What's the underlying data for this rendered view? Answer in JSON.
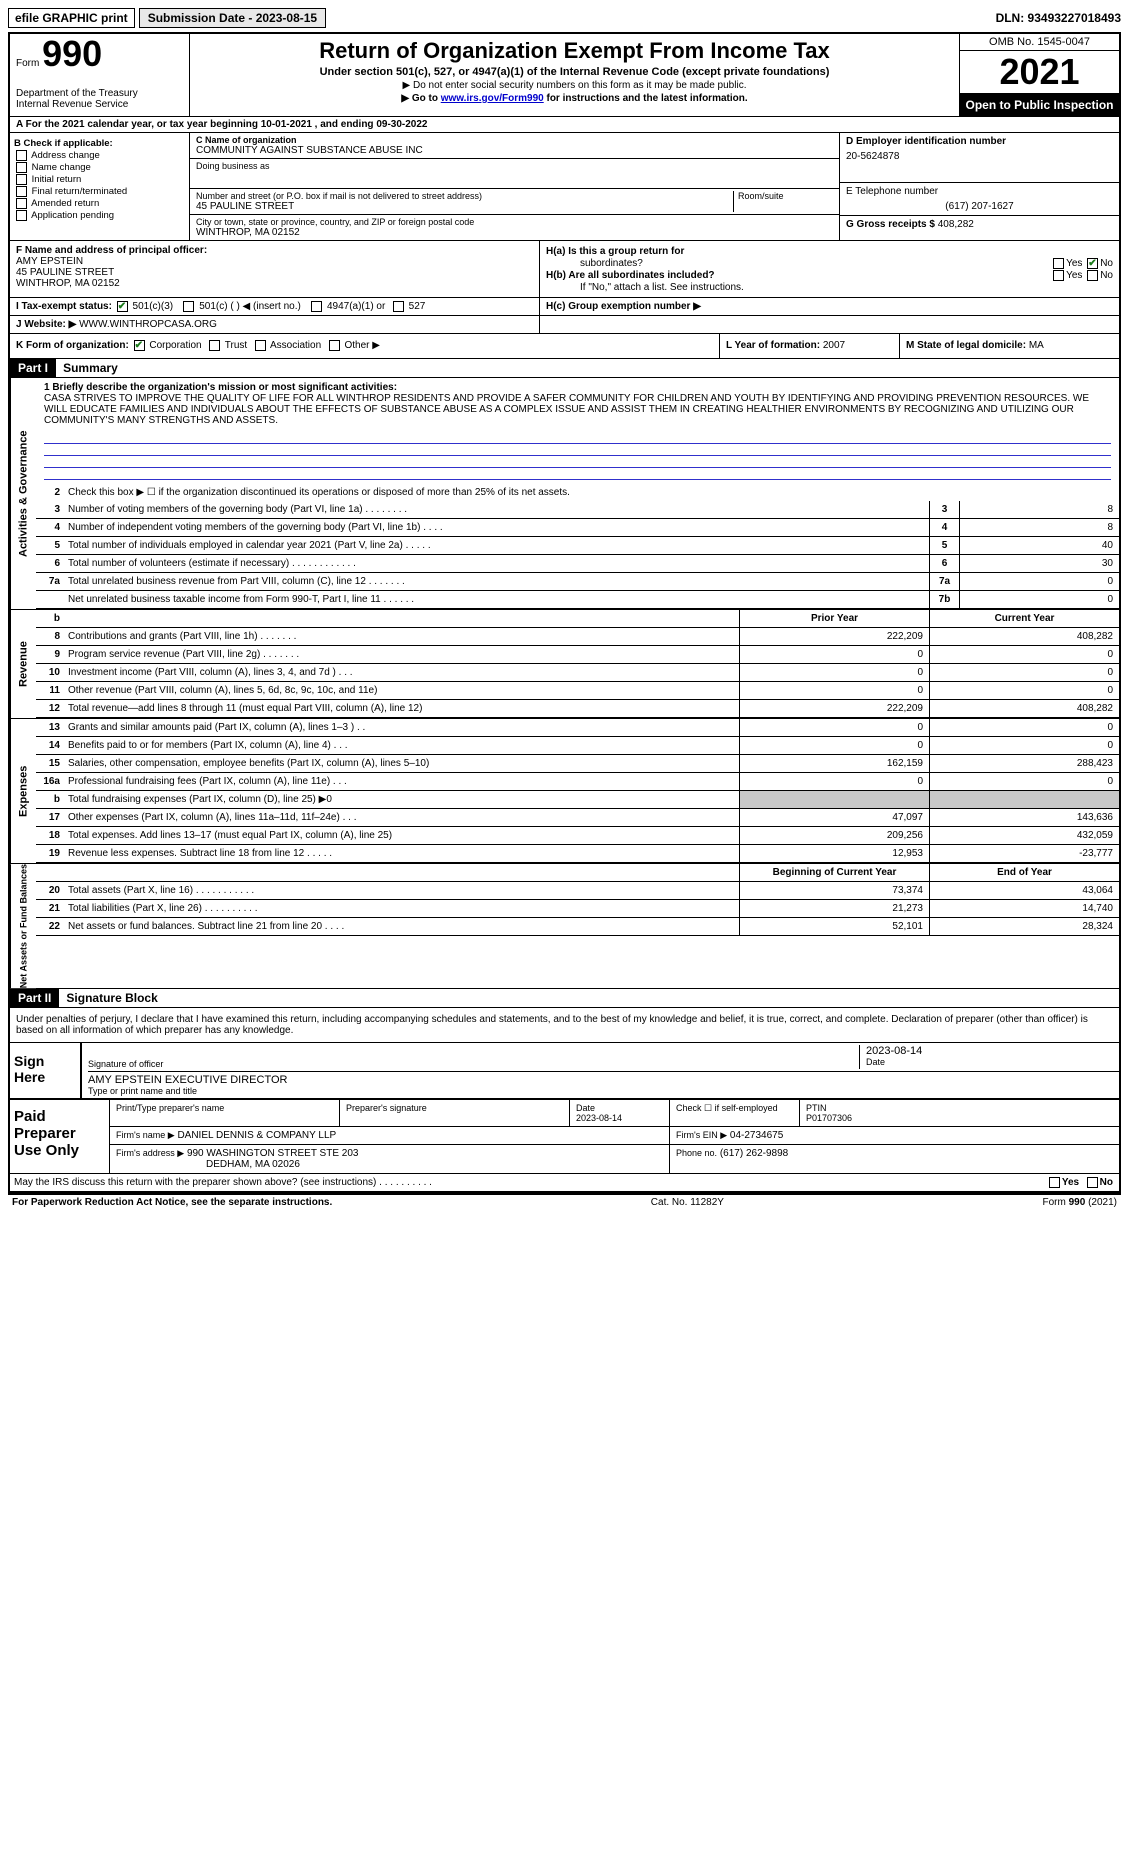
{
  "topbar": {
    "efile": "efile GRAPHIC print",
    "submission": "Submission Date - 2023-08-15",
    "dln": "DLN: 93493227018493"
  },
  "header": {
    "form_word": "Form",
    "form_num": "990",
    "dept": "Department of the Treasury",
    "irs": "Internal Revenue Service",
    "title": "Return of Organization Exempt From Income Tax",
    "sub": "Under section 501(c), 527, or 4947(a)(1) of the Internal Revenue Code (except private foundations)",
    "note1": "Do not enter social security numbers on this form as it may be made public.",
    "note2_a": "Go to ",
    "note2_link": "www.irs.gov/Form990",
    "note2_b": " for instructions and the latest information.",
    "omb": "OMB No. 1545-0047",
    "year": "2021",
    "open": "Open to Public Inspection"
  },
  "row_a": "A  For the 2021 calendar year, or tax year beginning 10-01-2021    , and ending 09-30-2022",
  "col_b": {
    "label": "B Check if applicable:",
    "items": [
      "Address change",
      "Name change",
      "Initial return",
      "Final return/terminated",
      "Amended return",
      "Application pending"
    ]
  },
  "col_c": {
    "name_label": "C Name of organization",
    "name": "COMMUNITY AGAINST SUBSTANCE ABUSE INC",
    "dba_label": "Doing business as",
    "street_label": "Number and street (or P.O. box if mail is not delivered to street address)",
    "street": "45 PAULINE STREET",
    "room_label": "Room/suite",
    "city_label": "City or town, state or province, country, and ZIP or foreign postal code",
    "city": "WINTHROP, MA  02152"
  },
  "col_d": {
    "label": "D Employer identification number",
    "val": "20-5624878",
    "e_label": "E Telephone number",
    "e_val": "(617) 207-1627",
    "g_label": "G Gross receipts $",
    "g_val": "408,282"
  },
  "col_f": {
    "label": "F  Name and address of principal officer:",
    "name": "AMY EPSTEIN",
    "street": "45 PAULINE STREET",
    "city": "WINTHROP, MA  02152"
  },
  "col_h": {
    "ha": "H(a)  Is this a group return for",
    "ha2": "subordinates?",
    "hb": "H(b)  Are all subordinates included?",
    "hb_note": "If \"No,\" attach a list. See instructions.",
    "hc": "H(c)  Group exemption number ▶",
    "yes": "Yes",
    "no": "No"
  },
  "row_i": {
    "label": "I    Tax-exempt status:",
    "opts": [
      "501(c)(3)",
      "501(c) (  ) ◀ (insert no.)",
      "4947(a)(1) or",
      "527"
    ]
  },
  "row_j": {
    "label": "J   Website: ▶",
    "val": "WWW.WINTHROPCASA.ORG"
  },
  "row_k": {
    "label": "K Form of organization:",
    "opts": [
      "Corporation",
      "Trust",
      "Association",
      "Other ▶"
    ]
  },
  "row_l": {
    "label": "L Year of formation:",
    "val": "2007"
  },
  "row_m": {
    "label": "M State of legal domicile:",
    "val": "MA"
  },
  "part1": {
    "hdr": "Part I",
    "title": "Summary",
    "tab": "Activities & Governance",
    "l1_label": "1  Briefly describe the organization's mission or most significant activities:",
    "l1_text": "CASA STRIVES TO IMPROVE THE QUALITY OF LIFE FOR ALL WINTHROP RESIDENTS AND PROVIDE A SAFER COMMUNITY FOR CHILDREN AND YOUTH BY IDENTIFYING AND PROVIDING PREVENTION RESOURCES. WE WILL EDUCATE FAMILIES AND INDIVIDUALS ABOUT THE EFFECTS OF SUBSTANCE ABUSE AS A COMPLEX ISSUE AND ASSIST THEM IN CREATING HEALTHIER ENVIRONMENTS BY RECOGNIZING AND UTILIZING OUR COMMUNITY'S MANY STRENGTHS AND ASSETS.",
    "l2": "Check this box ▶ ☐  if the organization discontinued its operations or disposed of more than 25% of its net assets.",
    "lines": [
      {
        "n": "3",
        "t": "Number of voting members of the governing body (Part VI, line 1a)   .    .    .    .    .    .    .    .",
        "b": "3",
        "v": "8"
      },
      {
        "n": "4",
        "t": "Number of independent voting members of the governing body (Part VI, line 1b)   .    .    .    .",
        "b": "4",
        "v": "8"
      },
      {
        "n": "5",
        "t": "Total number of individuals employed in calendar year 2021 (Part V, line 2a)   .    .    .    .    .",
        "b": "5",
        "v": "40"
      },
      {
        "n": "6",
        "t": "Total number of volunteers (estimate if necessary)   .    .    .    .    .    .    .    .    .    .    .    .",
        "b": "6",
        "v": "30"
      },
      {
        "n": "7a",
        "t": "Total unrelated business revenue from Part VIII, column (C), line 12   .    .    .    .    .    .    .",
        "b": "7a",
        "v": "0"
      },
      {
        "n": "",
        "t": "Net unrelated business taxable income from Form 990-T, Part I, line 11   .    .    .    .    .    .",
        "b": "7b",
        "v": "0"
      }
    ]
  },
  "revenue": {
    "tab": "Revenue",
    "hdr_prior": "Prior Year",
    "hdr_curr": "Current Year",
    "lines": [
      {
        "n": "8",
        "t": "Contributions and grants (Part VIII, line 1h)   .    .    .    .    .    .    .",
        "p": "222,209",
        "c": "408,282"
      },
      {
        "n": "9",
        "t": "Program service revenue (Part VIII, line 2g)   .    .    .    .    .    .    .",
        "p": "0",
        "c": "0"
      },
      {
        "n": "10",
        "t": "Investment income (Part VIII, column (A), lines 3, 4, and 7d )   .    .    .",
        "p": "0",
        "c": "0"
      },
      {
        "n": "11",
        "t": "Other revenue (Part VIII, column (A), lines 5, 6d, 8c, 9c, 10c, and 11e)",
        "p": "0",
        "c": "0"
      },
      {
        "n": "12",
        "t": "Total revenue—add lines 8 through 11 (must equal Part VIII, column (A), line 12)",
        "p": "222,209",
        "c": "408,282"
      }
    ]
  },
  "expenses": {
    "tab": "Expenses",
    "lines": [
      {
        "n": "13",
        "t": "Grants and similar amounts paid (Part IX, column (A), lines 1–3 )   .    .",
        "p": "0",
        "c": "0"
      },
      {
        "n": "14",
        "t": "Benefits paid to or for members (Part IX, column (A), line 4)   .    .    .",
        "p": "0",
        "c": "0"
      },
      {
        "n": "15",
        "t": "Salaries, other compensation, employee benefits (Part IX, column (A), lines 5–10)",
        "p": "162,159",
        "c": "288,423"
      },
      {
        "n": "16a",
        "t": "Professional fundraising fees (Part IX, column (A), line 11e)   .    .    .",
        "p": "0",
        "c": "0"
      },
      {
        "n": "b",
        "t": "Total fundraising expenses (Part IX, column (D), line 25) ▶0",
        "p": "",
        "c": "",
        "shaded": true
      },
      {
        "n": "17",
        "t": "Other expenses (Part IX, column (A), lines 11a–11d, 11f–24e)   .    .    .",
        "p": "47,097",
        "c": "143,636"
      },
      {
        "n": "18",
        "t": "Total expenses. Add lines 13–17 (must equal Part IX, column (A), line 25)",
        "p": "209,256",
        "c": "432,059"
      },
      {
        "n": "19",
        "t": "Revenue less expenses. Subtract line 18 from line 12   .    .    .    .    .",
        "p": "12,953",
        "c": "-23,777"
      }
    ]
  },
  "netassets": {
    "tab": "Net Assets or Fund Balances",
    "hdr_beg": "Beginning of Current Year",
    "hdr_end": "End of Year",
    "lines": [
      {
        "n": "20",
        "t": "Total assets (Part X, line 16)   .    .    .    .    .    .    .    .    .    .    .",
        "p": "73,374",
        "c": "43,064"
      },
      {
        "n": "21",
        "t": "Total liabilities (Part X, line 26)   .    .    .    .    .    .    .    .    .    .",
        "p": "21,273",
        "c": "14,740"
      },
      {
        "n": "22",
        "t": "Net assets or fund balances. Subtract line 21 from line 20   .    .    .    .",
        "p": "52,101",
        "c": "28,324"
      }
    ]
  },
  "part2": {
    "hdr": "Part II",
    "title": "Signature Block",
    "decl": "Under penalties of perjury, I declare that I have examined this return, including accompanying schedules and statements, and to the best of my knowledge and belief, it is true, correct, and complete. Declaration of preparer (other than officer) is based on all information of which preparer has any knowledge.",
    "sign_here": "Sign Here",
    "sig_officer": "Signature of officer",
    "sig_date": "2023-08-14",
    "date_label": "Date",
    "name_title": "AMY EPSTEIN  EXECUTIVE DIRECTOR",
    "name_title_label": "Type or print name and title"
  },
  "preparer": {
    "label": "Paid Preparer Use Only",
    "h1": "Print/Type preparer's name",
    "h2": "Preparer's signature",
    "h3": "Date",
    "h3v": "2023-08-14",
    "h4": "Check ☐ if self-employed",
    "h5": "PTIN",
    "h5v": "P01707306",
    "firm_name_l": "Firm's name    ▶",
    "firm_name": "DANIEL DENNIS & COMPANY LLP",
    "firm_ein_l": "Firm's EIN ▶",
    "firm_ein": "04-2734675",
    "firm_addr_l": "Firm's address ▶",
    "firm_addr": "990 WASHINGTON STREET STE 203",
    "firm_city": "DEDHAM, MA  02026",
    "phone_l": "Phone no.",
    "phone": "(617) 262-9898",
    "discuss": "May the IRS discuss this return with the preparer shown above? (see instructions)   .    .    .    .    .    .    .    .    .    .",
    "yes": "Yes",
    "no": "No"
  },
  "footer": {
    "left": "For Paperwork Reduction Act Notice, see the separate instructions.",
    "mid": "Cat. No. 11282Y",
    "right": "Form 990 (2021)"
  },
  "colors": {
    "black": "#000000",
    "blue_line": "#3030cc",
    "link": "#0000cc",
    "shaded": "#c8c8c8",
    "check_green": "#1a7a1a"
  }
}
